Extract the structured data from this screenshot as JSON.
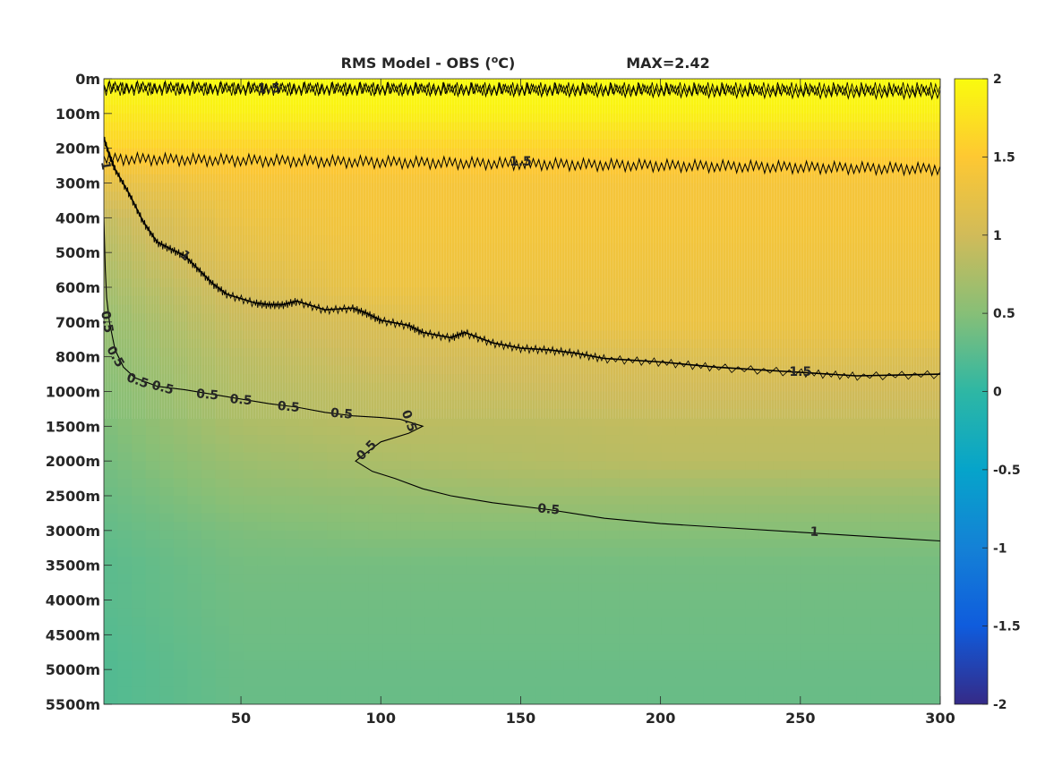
{
  "chart_data": {
    "type": "heatmap",
    "title": "RMS Model - OBS (",
    "title_unit_sup": "o",
    "title_unit_tail": "C)",
    "title_max": "MAX=2.42",
    "x": {
      "range": [
        1,
        300
      ],
      "ticks": [
        50,
        100,
        150,
        200,
        250,
        300
      ],
      "tick_labels": [
        "50",
        "100",
        "150",
        "200",
        "250",
        "300"
      ]
    },
    "y": {
      "reversed": true,
      "tick_labels": [
        "0m",
        "100m",
        "200m",
        "300m",
        "400m",
        "500m",
        "600m",
        "700m",
        "800m",
        "1000m",
        "1500m",
        "2000m",
        "2500m",
        "3000m",
        "3500m",
        "4000m",
        "4500m",
        "5000m",
        "5500m"
      ]
    },
    "colorbar": {
      "colormap": "parula",
      "range": [
        -2,
        2
      ],
      "ticks": [
        2,
        1.5,
        1,
        0.5,
        0,
        -0.5,
        -1,
        -1.5,
        -2
      ],
      "tick_labels": [
        "2",
        "1.5",
        "1",
        "0.5",
        "0",
        "-0.5",
        "-1",
        "-1.5",
        "-2"
      ],
      "colors": [
        "#352a87",
        "#0f5cdd",
        "#1481d6",
        "#06a4ca",
        "#2eb7a4",
        "#87bf77",
        "#d1bb59",
        "#fec832",
        "#f9fb0e"
      ]
    },
    "heatmap_approx": {
      "note_levels": "approximate field values by depth level (row) and x (columns)",
      "x": [
        1,
        50,
        100,
        150,
        200,
        250,
        300
      ],
      "values": [
        [
          2.0,
          2.0,
          2.0,
          2.0,
          2.0,
          2.0,
          2.0
        ],
        [
          1.8,
          1.9,
          1.9,
          1.9,
          1.9,
          1.9,
          1.9
        ],
        [
          1.6,
          1.6,
          1.6,
          1.6,
          1.6,
          1.6,
          1.6
        ],
        [
          1.2,
          1.4,
          1.4,
          1.4,
          1.4,
          1.4,
          1.4
        ],
        [
          0.9,
          1.3,
          1.4,
          1.4,
          1.4,
          1.4,
          1.4
        ],
        [
          0.8,
          1.2,
          1.35,
          1.35,
          1.35,
          1.35,
          1.35
        ],
        [
          0.7,
          1.05,
          1.3,
          1.3,
          1.3,
          1.3,
          1.3
        ],
        [
          0.6,
          0.95,
          1.1,
          1.25,
          1.3,
          1.3,
          1.3
        ],
        [
          0.55,
          0.85,
          1.0,
          1.05,
          1.1,
          1.15,
          1.1
        ],
        [
          0.5,
          0.8,
          0.9,
          0.95,
          1.0,
          1.0,
          1.0
        ],
        [
          0.45,
          0.75,
          0.85,
          0.85,
          0.9,
          0.9,
          0.9
        ],
        [
          0.4,
          0.65,
          0.75,
          0.8,
          0.85,
          0.85,
          0.85
        ],
        [
          0.35,
          0.55,
          0.6,
          0.65,
          0.65,
          0.65,
          0.65
        ],
        [
          0.3,
          0.45,
          0.5,
          0.5,
          0.5,
          0.5,
          0.5
        ],
        [
          0.25,
          0.4,
          0.4,
          0.4,
          0.4,
          0.4,
          0.4
        ],
        [
          0.25,
          0.38,
          0.38,
          0.38,
          0.38,
          0.38,
          0.38
        ],
        [
          0.22,
          0.36,
          0.36,
          0.36,
          0.36,
          0.36,
          0.36
        ],
        [
          0.2,
          0.34,
          0.34,
          0.34,
          0.34,
          0.34,
          0.34
        ],
        [
          0.2,
          0.33,
          0.33,
          0.33,
          0.33,
          0.33,
          0.33
        ]
      ]
    },
    "contours": [
      {
        "level_label": "1.5",
        "x": [
          1,
          300
        ],
        "y_level": [
          2.3,
          2.6
        ]
      },
      {
        "level_label": "1",
        "x": [
          1,
          3,
          5,
          10,
          15,
          20,
          25,
          30,
          35,
          40,
          45,
          55,
          60,
          65,
          70,
          80,
          90,
          95,
          100,
          110,
          115,
          125,
          130,
          140,
          150,
          160,
          170,
          180,
          200,
          220,
          250,
          270,
          300
        ],
        "y_level": [
          1.7,
          2.2,
          2.6,
          3.3,
          4.1,
          4.7,
          4.9,
          5.1,
          5.5,
          5.9,
          6.2,
          6.45,
          6.5,
          6.5,
          6.4,
          6.65,
          6.6,
          6.75,
          6.95,
          7.1,
          7.3,
          7.45,
          7.3,
          7.6,
          7.75,
          7.8,
          7.9,
          8.05,
          8.15,
          8.3,
          8.45,
          8.55,
          8.5
        ]
      },
      {
        "level_label": "0.5",
        "x": [
          1,
          1.5,
          2,
          3,
          5,
          8,
          12,
          20,
          30,
          45,
          60,
          70,
          80,
          90,
          100,
          107,
          115,
          110,
          100,
          95,
          91,
          97,
          105,
          115,
          125,
          140,
          160,
          180,
          200,
          220,
          250,
          270,
          300
        ],
        "y_level": [
          4.0,
          5.5,
          6.3,
          7.0,
          7.8,
          8.3,
          8.6,
          8.85,
          8.95,
          9.15,
          9.35,
          9.45,
          9.6,
          9.7,
          9.75,
          9.8,
          10.0,
          10.2,
          10.45,
          10.75,
          11.0,
          11.3,
          11.5,
          11.8,
          12.0,
          12.2,
          12.4,
          12.65,
          12.8,
          12.9,
          13.05,
          13.15,
          13.3
        ]
      }
    ],
    "contour_labels": [
      "0.5",
      "0.5",
      "0.5",
      "0.5",
      "0.5",
      "0.5",
      "0.5",
      "0.5",
      "0.5",
      "0.5",
      "0.5",
      "1",
      "1",
      "1",
      "1.5",
      "1.5",
      "1.5"
    ]
  }
}
